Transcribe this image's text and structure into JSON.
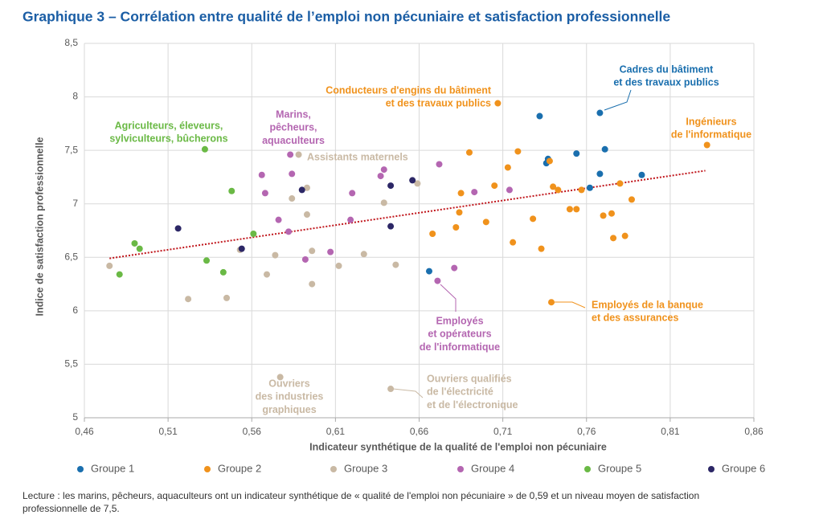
{
  "chart_data": {
    "type": "scatter",
    "title": "Graphique 3 – Corrélation entre qualité de l’emploi non pécuniaire et satisfaction professionnelle",
    "xlabel": "Indicateur synthétique de la qualité de l'emploi non pécuniaire",
    "ylabel": "Indice de satisfaction professionnelle",
    "xlim": [
      0.46,
      0.86
    ],
    "ylim": [
      5,
      8.5
    ],
    "xticks": [
      {
        "value": 0.46,
        "label": "0,46"
      },
      {
        "value": 0.51,
        "label": "0,51"
      },
      {
        "value": 0.56,
        "label": "0,56"
      },
      {
        "value": 0.61,
        "label": "0,61"
      },
      {
        "value": 0.66,
        "label": "0,66"
      },
      {
        "value": 0.71,
        "label": "0,71"
      },
      {
        "value": 0.76,
        "label": "0,76"
      },
      {
        "value": 0.81,
        "label": "0,81"
      },
      {
        "value": 0.86,
        "label": "0,86"
      }
    ],
    "yticks": [
      5,
      {
        "value": 5.5,
        "label": "5,5"
      },
      6,
      {
        "value": 6.5,
        "label": "6,5"
      },
      7,
      {
        "value": 7.5,
        "label": "7,5"
      },
      8,
      {
        "value": 8.5,
        "label": "8,5"
      }
    ],
    "grid": true,
    "legend": "bottom",
    "series": [
      {
        "name": "Groupe 1",
        "color": "#1a6fae",
        "x": [
          0.732,
          0.768,
          0.771,
          0.754,
          0.737,
          0.736,
          0.768,
          0.793,
          0.762,
          0.666
        ],
        "y": [
          7.82,
          7.85,
          7.51,
          7.47,
          7.42,
          7.38,
          7.28,
          7.27,
          7.15,
          6.37
        ]
      },
      {
        "name": "Groupe 2",
        "color": "#f0921c",
        "x": [
          0.707,
          0.832,
          0.69,
          0.719,
          0.713,
          0.738,
          0.705,
          0.74,
          0.743,
          0.757,
          0.78,
          0.685,
          0.684,
          0.75,
          0.754,
          0.787,
          0.77,
          0.775,
          0.7,
          0.728,
          0.682,
          0.668,
          0.716,
          0.733,
          0.776,
          0.783,
          0.739
        ],
        "y": [
          7.94,
          7.55,
          7.48,
          7.49,
          7.34,
          7.4,
          7.17,
          7.16,
          7.13,
          7.13,
          7.19,
          7.1,
          6.92,
          6.95,
          6.95,
          7.04,
          6.89,
          6.91,
          6.83,
          6.86,
          6.78,
          6.72,
          6.64,
          6.58,
          6.68,
          6.7,
          6.08
        ]
      },
      {
        "name": "Groupe 3",
        "color": "#c9b9a4",
        "x": [
          0.588,
          0.584,
          0.593,
          0.593,
          0.659,
          0.639,
          0.475,
          0.553,
          0.574,
          0.596,
          0.627,
          0.612,
          0.646,
          0.569,
          0.596,
          0.522,
          0.545,
          0.577,
          0.643
        ],
        "y": [
          7.46,
          7.05,
          7.15,
          6.9,
          7.19,
          7.01,
          6.42,
          6.57,
          6.52,
          6.56,
          6.53,
          6.42,
          6.43,
          6.34,
          6.25,
          6.11,
          6.12,
          5.38,
          5.27
        ]
      },
      {
        "name": "Groupe 4",
        "color": "#b466b1",
        "x": [
          0.583,
          0.566,
          0.584,
          0.639,
          0.637,
          0.672,
          0.568,
          0.62,
          0.693,
          0.714,
          0.576,
          0.619,
          0.582,
          0.607,
          0.592,
          0.681,
          0.671
        ],
        "y": [
          7.46,
          7.27,
          7.28,
          7.32,
          7.26,
          7.37,
          7.1,
          7.1,
          7.11,
          7.13,
          6.85,
          6.85,
          6.74,
          6.55,
          6.48,
          6.4,
          6.28
        ]
      },
      {
        "name": "Groupe 5",
        "color": "#6ab945",
        "x": [
          0.532,
          0.548,
          0.561,
          0.49,
          0.493,
          0.533,
          0.543,
          0.481
        ],
        "y": [
          7.51,
          7.12,
          6.72,
          6.63,
          6.58,
          6.47,
          6.36,
          6.34
        ]
      },
      {
        "name": "Groupe 6",
        "color": "#2c2766",
        "x": [
          0.656,
          0.643,
          0.59,
          0.516,
          0.643,
          0.554
        ],
        "y": [
          7.22,
          7.17,
          7.13,
          6.77,
          6.79,
          6.58
        ]
      }
    ],
    "trend": {
      "color": "#c0161c",
      "x": [
        0.475,
        0.831
      ],
      "y": [
        6.49,
        7.31
      ]
    },
    "annotations": [
      {
        "lines": [
          "Cadres du bâtiment",
          "et des travaux publics"
        ],
        "color": "#1a6fae"
      },
      {
        "lines": [
          "Conducteurs d'engins du bâtiment",
          "et des travaux publics"
        ],
        "color": "#f0921c"
      },
      {
        "lines": [
          "Ingénieurs",
          "de l'informatique"
        ],
        "color": "#f0921c"
      },
      {
        "lines": [
          "Agriculteurs, éleveurs,",
          "sylviculteurs, bûcherons"
        ],
        "color": "#6ab945"
      },
      {
        "lines": [
          "Marins,",
          "pêcheurs,",
          "aquaculteurs"
        ],
        "color": "#b466b1"
      },
      {
        "lines": [
          "Assistants maternels"
        ],
        "color": "#c9b9a4"
      },
      {
        "lines": [
          "Employés",
          "et opérateurs",
          "de l'informatique"
        ],
        "color": "#b466b1"
      },
      {
        "lines": [
          "Employés de la banque",
          "et des assurances"
        ],
        "color": "#f0921c"
      },
      {
        "lines": [
          "Ouvriers",
          "des industries",
          "graphiques"
        ],
        "color": "#c9b9a4"
      },
      {
        "lines": [
          "Ouvriers qualifiés",
          "de l'électricité",
          "et de l'électronique"
        ],
        "color": "#c9b9a4"
      }
    ],
    "note": [
      "Lecture : les marins, pêcheurs, aquaculteurs ont un indicateur synthétique de « qualité de l'emploi non pécuniaire » de 0,59 et un niveau moyen de satisfaction",
      "professionnelle de 7,5."
    ]
  }
}
